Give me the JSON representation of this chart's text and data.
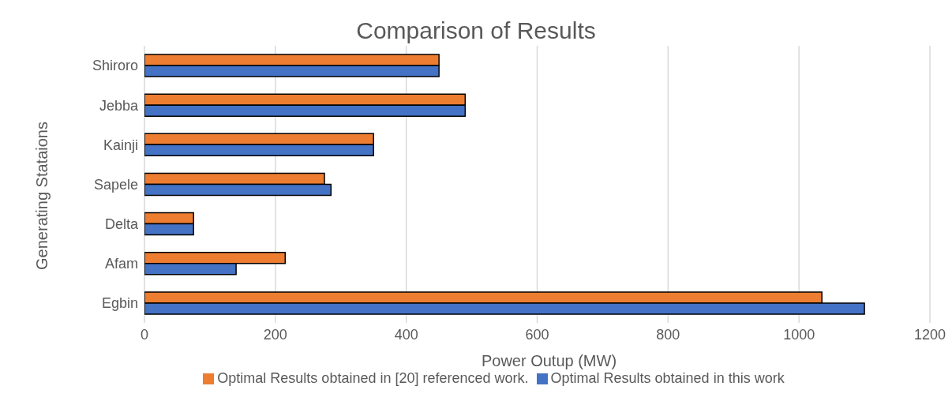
{
  "chart_data": {
    "type": "bar",
    "orientation": "horizontal",
    "title": "Comparison of Results",
    "xlabel": "Power Outup (MW)",
    "ylabel": "Generating Stataions",
    "categories": [
      "Shiroro",
      "Jebba",
      "Kainji",
      "Sapele",
      "Delta",
      "Afam",
      "Egbin"
    ],
    "series": [
      {
        "name": "Optimal Results obtained in [20] referenced work.",
        "color": "#ed7d31",
        "values": [
          450,
          490,
          350,
          275,
          75,
          215,
          1035
        ]
      },
      {
        "name": "Optimal Results obtained in this work",
        "color": "#4472c4",
        "values": [
          450,
          490,
          350,
          285,
          75,
          140,
          1100
        ]
      }
    ],
    "xlim": [
      0,
      1200
    ],
    "xticks": [
      0,
      200,
      400,
      600,
      800,
      1000,
      1200
    ],
    "grid": "x",
    "legend": "bottom"
  }
}
